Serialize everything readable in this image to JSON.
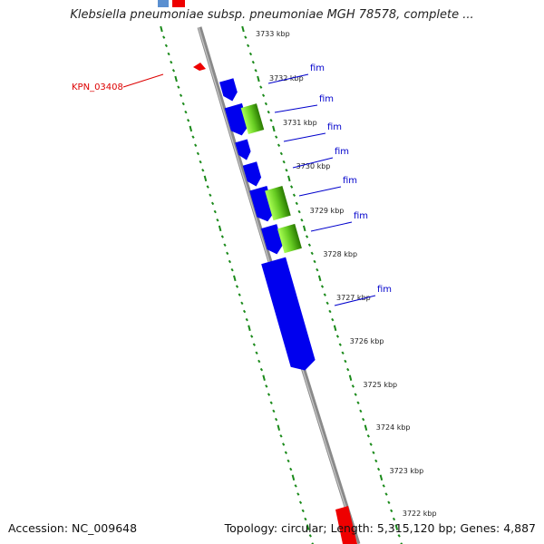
{
  "title": "Klebsiella pneumoniae subsp. pneumoniae MGH 78578, complete ...",
  "footer": {
    "accession": "Accession: NC_009648",
    "summary": "Topology: circular; Length: 5,315,120 bp; Genes: 4,887"
  },
  "colors": {
    "backbone": "#8a8a8a",
    "tick": "#1a8a1a",
    "gene_forward": "#0000ee",
    "gene_reverse": "#ee0000",
    "fim_label": "#0000cc",
    "kpn_label": "#dd0000"
  },
  "scale": {
    "unit": "kbp",
    "labels": [
      "3733 kbp",
      "3732 kbp",
      "3731 kbp",
      "3730 kbp",
      "3729 kbp",
      "3728 kbp",
      "3727 kbp",
      "3726 kbp",
      "3725 kbp",
      "3724 kbp",
      "3723 kbp",
      "3722 kbp"
    ]
  },
  "genes": [
    {
      "label": "fim",
      "strand": "+",
      "gradient": false
    },
    {
      "label": "fim",
      "strand": "+",
      "gradient": true
    },
    {
      "label": "fim",
      "strand": "+",
      "gradient": false
    },
    {
      "label": "fim",
      "strand": "+",
      "gradient": false
    },
    {
      "label": "fim",
      "strand": "+",
      "gradient": true
    },
    {
      "label": "fim",
      "strand": "+",
      "gradient": true
    },
    {
      "label": "fim",
      "strand": "+",
      "gradient": false
    }
  ],
  "other_features": [
    {
      "label": "KPN_03408",
      "strand": "-"
    }
  ]
}
